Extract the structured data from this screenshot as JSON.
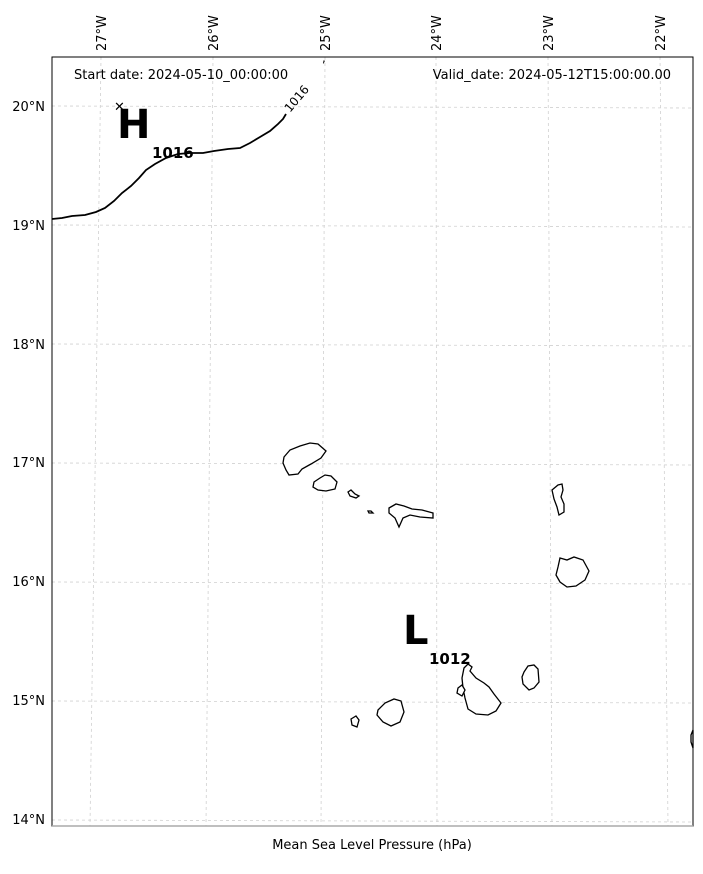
{
  "header": {
    "start_date": "Start date: 2024-05-10_00:00:00",
    "valid_date": "Valid_date: 2024-05-12T15:00:00.00"
  },
  "footer": {
    "variable_label": "Mean Sea Level Pressure (hPa)"
  },
  "axes": {
    "longitude_ticks": [
      "27°W",
      "26°W",
      "25°W",
      "24°W",
      "23°W",
      "22°W"
    ],
    "latitude_ticks": [
      "20°N",
      "19°N",
      "18°N",
      "17°N",
      "16°N",
      "15°N",
      "14°N"
    ],
    "lon_range": [
      -27.33,
      -21.78
    ],
    "lat_range": [
      13.95,
      20.45
    ],
    "grid": true
  },
  "pressure_centers": [
    {
      "type": "H",
      "value": "1016",
      "lon": -26.4,
      "lat": 19.55
    },
    {
      "type": "L",
      "value": "1012",
      "lon": -23.83,
      "lat": 15.3
    }
  ],
  "isobars": [
    {
      "label": "1016",
      "level": 1016
    }
  ],
  "high_marker": {
    "lon": -26.75,
    "lat": 19.98
  }
}
